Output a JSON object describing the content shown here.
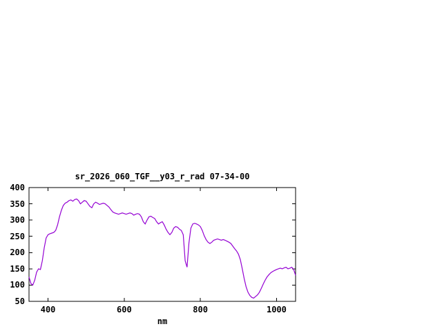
{
  "chart_data": {
    "type": "line",
    "title": "sr_2026_060_TGF__y03_r_rad 07-34-00",
    "xlabel": "nm",
    "ylabel": "",
    "xlim": [
      350,
      1050
    ],
    "ylim": [
      50,
      400
    ],
    "xticks": [
      400,
      600,
      800,
      1000
    ],
    "yticks": [
      50,
      100,
      150,
      200,
      250,
      300,
      350,
      400
    ],
    "grid": false,
    "legend": "none",
    "line_color": "#9400d3",
    "border_color": "#000000",
    "x": [
      350,
      355,
      360,
      365,
      370,
      375,
      380,
      385,
      390,
      395,
      400,
      405,
      410,
      415,
      420,
      425,
      430,
      435,
      440,
      445,
      450,
      455,
      460,
      465,
      470,
      475,
      480,
      485,
      490,
      495,
      500,
      505,
      510,
      515,
      520,
      525,
      530,
      535,
      540,
      545,
      550,
      555,
      560,
      565,
      570,
      575,
      580,
      585,
      590,
      595,
      600,
      605,
      610,
      615,
      620,
      625,
      630,
      635,
      640,
      645,
      650,
      655,
      660,
      665,
      670,
      675,
      680,
      685,
      690,
      695,
      700,
      705,
      710,
      715,
      720,
      725,
      730,
      735,
      740,
      745,
      750,
      755,
      760,
      765,
      770,
      775,
      780,
      785,
      790,
      795,
      800,
      805,
      810,
      815,
      820,
      825,
      830,
      835,
      840,
      845,
      850,
      855,
      860,
      865,
      870,
      875,
      880,
      885,
      890,
      895,
      900,
      905,
      910,
      915,
      920,
      925,
      930,
      935,
      940,
      945,
      950,
      955,
      960,
      965,
      970,
      975,
      980,
      985,
      990,
      995,
      1000,
      1005,
      1010,
      1015,
      1020,
      1025,
      1030,
      1035,
      1040,
      1045,
      1050
    ],
    "y": [
      125,
      105,
      100,
      115,
      140,
      150,
      148,
      175,
      215,
      245,
      255,
      258,
      260,
      262,
      268,
      285,
      310,
      330,
      345,
      352,
      355,
      360,
      362,
      358,
      363,
      365,
      360,
      350,
      355,
      360,
      358,
      350,
      342,
      338,
      350,
      355,
      352,
      348,
      350,
      352,
      350,
      345,
      340,
      332,
      325,
      322,
      320,
      318,
      320,
      322,
      320,
      318,
      320,
      322,
      320,
      315,
      318,
      320,
      318,
      310,
      295,
      288,
      300,
      310,
      312,
      308,
      305,
      295,
      288,
      292,
      295,
      285,
      272,
      262,
      255,
      262,
      275,
      280,
      278,
      272,
      268,
      255,
      175,
      155,
      230,
      275,
      288,
      290,
      288,
      285,
      280,
      268,
      252,
      240,
      232,
      228,
      232,
      238,
      240,
      242,
      240,
      238,
      240,
      238,
      235,
      232,
      228,
      220,
      212,
      205,
      195,
      178,
      150,
      120,
      95,
      78,
      68,
      62,
      60,
      65,
      70,
      78,
      90,
      103,
      115,
      125,
      132,
      138,
      142,
      145,
      148,
      150,
      152,
      150,
      153,
      155,
      150,
      152,
      155,
      148,
      130
    ]
  }
}
